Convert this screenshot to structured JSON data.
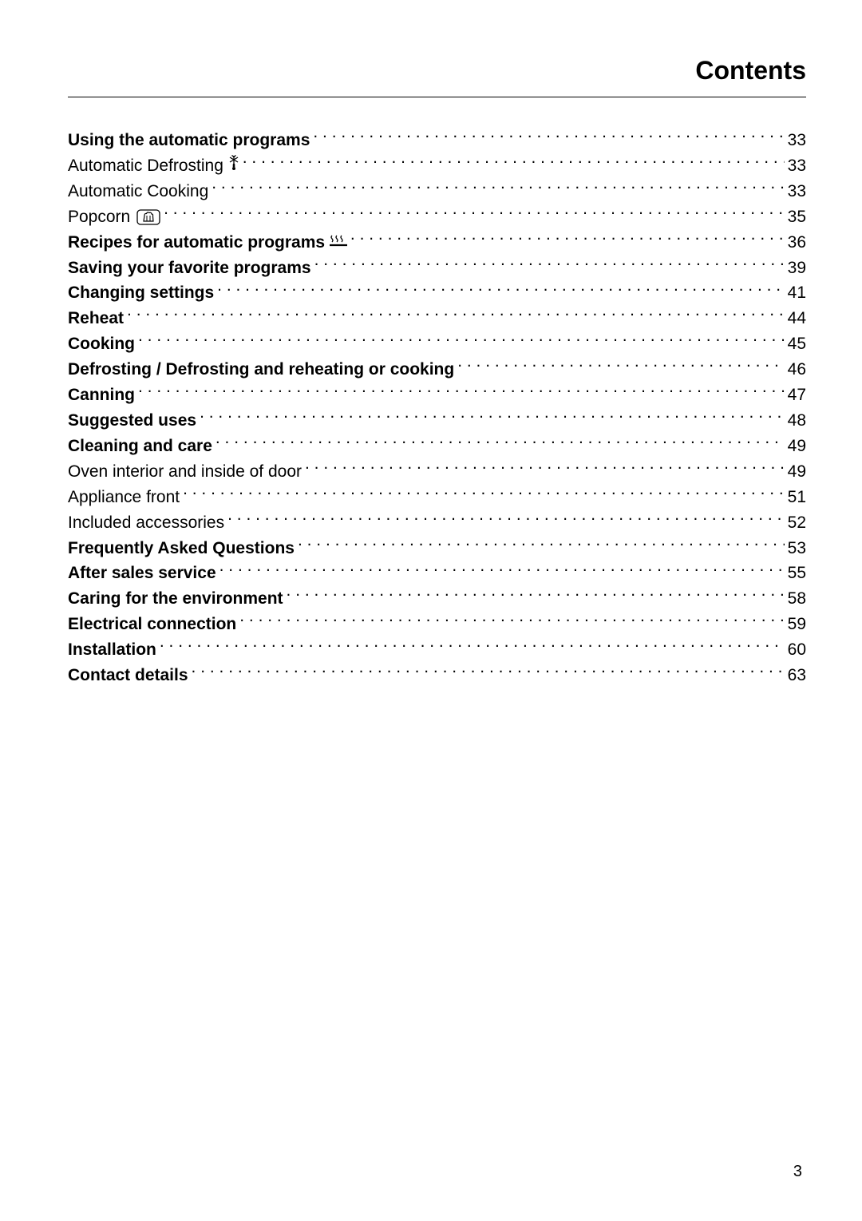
{
  "header": {
    "title": "Contents"
  },
  "toc": {
    "entries": [
      {
        "label": "Using the automatic programs",
        "page": "33",
        "bold": true,
        "icon": null
      },
      {
        "label": "Automatic Defrosting ",
        "page": "33",
        "bold": false,
        "icon": "defrost"
      },
      {
        "label": "Automatic Cooking ",
        "page": "33",
        "bold": false,
        "icon": null
      },
      {
        "label": "Popcorn ",
        "page": "35",
        "bold": false,
        "icon": "popcorn"
      },
      {
        "label": "Recipes for automatic programs ",
        "page": "36",
        "bold": true,
        "icon": "steam"
      },
      {
        "label": "Saving your favorite programs",
        "page": "39",
        "bold": true,
        "icon": null
      },
      {
        "label": "Changing settings ",
        "page": "41",
        "bold": true,
        "icon": null
      },
      {
        "label": "Reheat",
        "page": "44",
        "bold": true,
        "icon": null
      },
      {
        "label": "Cooking",
        "page": "45",
        "bold": true,
        "icon": null
      },
      {
        "label": "Defrosting / Defrosting and reheating or cooking ",
        "page": "46",
        "bold": true,
        "icon": null
      },
      {
        "label": "Canning",
        "page": "47",
        "bold": true,
        "icon": null
      },
      {
        "label": "Suggested uses ",
        "page": "48",
        "bold": true,
        "icon": null
      },
      {
        "label": "Cleaning and care ",
        "page": "49",
        "bold": true,
        "icon": null
      },
      {
        "label": "Oven interior and inside of door ",
        "page": "49",
        "bold": false,
        "icon": null
      },
      {
        "label": "Appliance front ",
        "page": "51",
        "bold": false,
        "icon": null
      },
      {
        "label": "Included accessories ",
        "page": "52",
        "bold": false,
        "icon": null
      },
      {
        "label": "Frequently Asked Questions ",
        "page": "53",
        "bold": true,
        "icon": null
      },
      {
        "label": "After sales service",
        "page": "55",
        "bold": true,
        "icon": null
      },
      {
        "label": "Caring for the environment",
        "page": "58",
        "bold": true,
        "icon": null
      },
      {
        "label": "Electrical connection",
        "page": "59",
        "bold": true,
        "icon": null
      },
      {
        "label": "Installation ",
        "page": "60",
        "bold": true,
        "icon": null
      },
      {
        "label": "Contact details ",
        "page": "63",
        "bold": true,
        "icon": null
      }
    ]
  },
  "page_number": "3",
  "colors": {
    "background": "#ffffff",
    "text": "#000000",
    "border": "#000000"
  },
  "typography": {
    "header_fontsize": 32,
    "entry_fontsize": 21,
    "pagenum_fontsize": 20,
    "font_family": "Arial, Helvetica, sans-serif"
  }
}
